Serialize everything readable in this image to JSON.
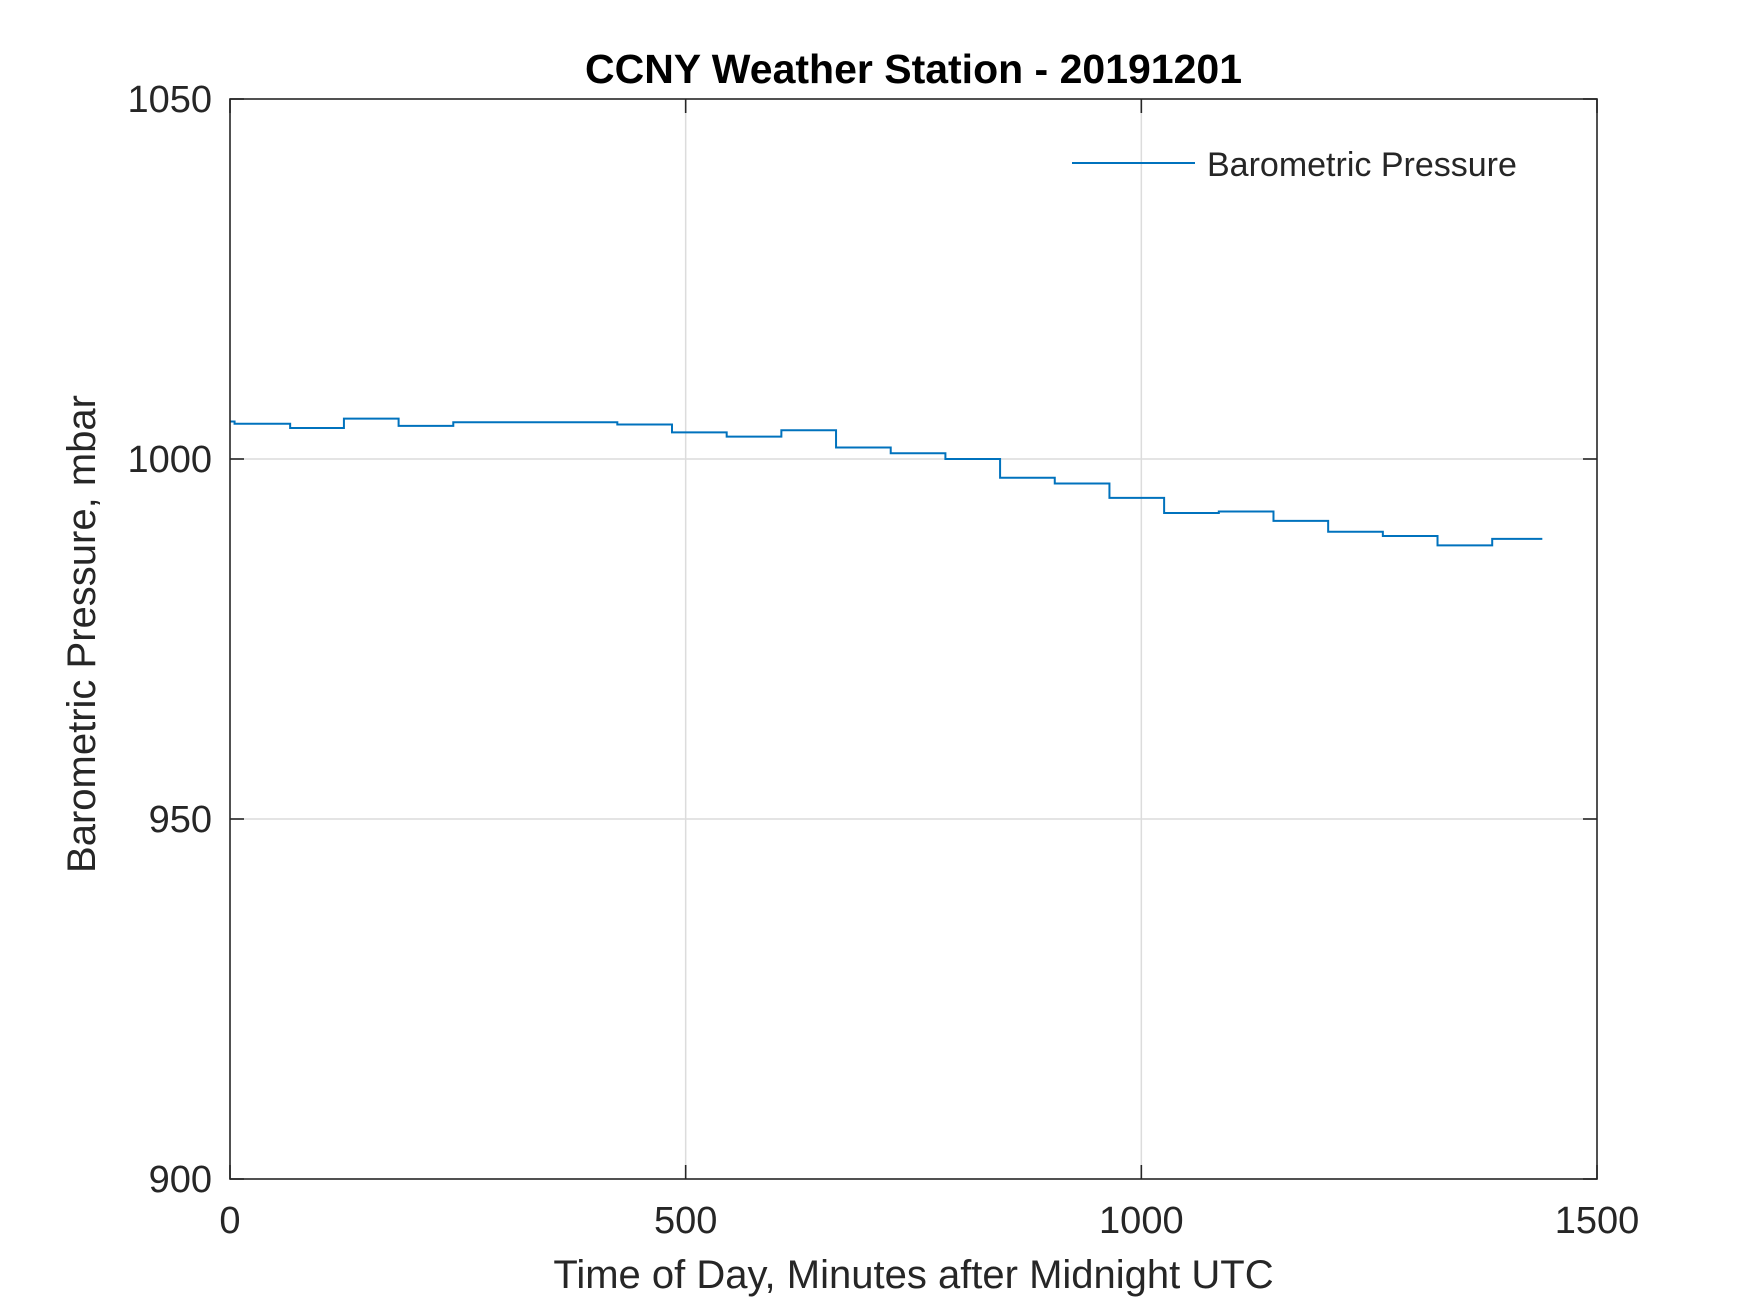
{
  "chart_data": {
    "type": "line",
    "title": "CCNY Weather Station - 20191201",
    "xlabel": "Time of Day, Minutes after Midnight UTC",
    "ylabel": "Barometric Pressure, mbar",
    "xlim": [
      0,
      1500
    ],
    "ylim": [
      900,
      1050
    ],
    "xticks": [
      0,
      500,
      1000,
      1500
    ],
    "yticks": [
      900,
      950,
      1000,
      1050
    ],
    "xtick_labels": [
      "0",
      "500",
      "1000",
      "1500"
    ],
    "ytick_labels": [
      "900",
      "950",
      "1000",
      "1050"
    ],
    "grid": true,
    "legend_position": "top-right",
    "series": [
      {
        "name": "Barometric Pressure",
        "color": "#0072BD",
        "step": true,
        "x": [
          0,
          5,
          66,
          125,
          185,
          245,
          305,
          365,
          425,
          485,
          545,
          605,
          665,
          725,
          785,
          845,
          905,
          965,
          1025,
          1085,
          1145,
          1205,
          1265,
          1325,
          1385,
          1440
        ],
        "y": [
          1005.2,
          1004.9,
          1004.3,
          1005.6,
          1004.6,
          1005.1,
          1005.1,
          1005.1,
          1004.8,
          1003.7,
          1003.1,
          1004.0,
          1001.6,
          1000.8,
          1000.0,
          997.4,
          996.6,
          994.6,
          992.5,
          992.7,
          991.4,
          989.9,
          989.3,
          988.0,
          988.9,
          988.9
        ]
      }
    ]
  }
}
